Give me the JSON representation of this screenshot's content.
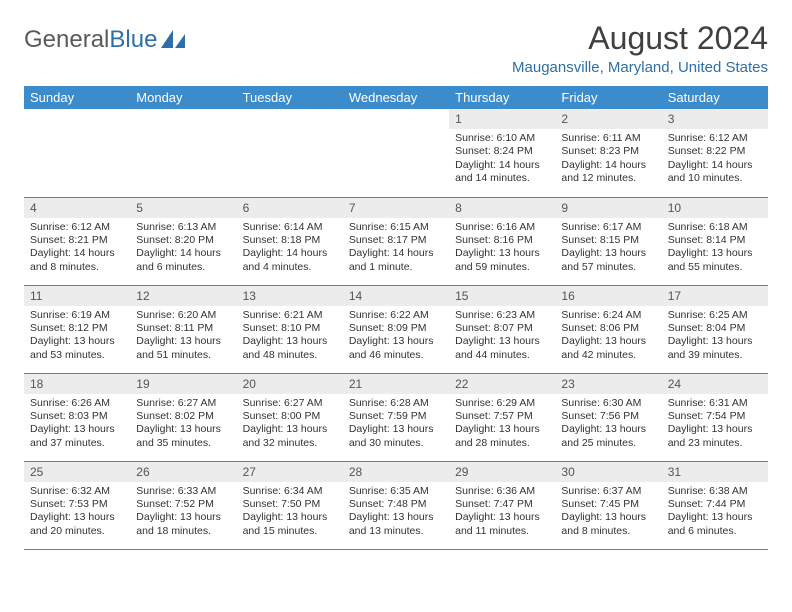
{
  "brand": {
    "word1": "General",
    "word2": "Blue"
  },
  "header": {
    "title": "August 2024",
    "location": "Maugansville, Maryland, United States"
  },
  "colors": {
    "header_bg": "#3c8ccb",
    "header_text": "#ffffff",
    "daynum_bg": "#ececec",
    "rule": "#3c8ccb",
    "accent_text": "#2f6fa8",
    "body_text": "#333333",
    "page_bg": "#ffffff"
  },
  "typography": {
    "title_fontsize": 32,
    "location_fontsize": 15,
    "dayheader_fontsize": 13,
    "daynum_fontsize": 12,
    "detail_fontsize": 10.5
  },
  "calendar": {
    "type": "table",
    "day_headers": [
      "Sunday",
      "Monday",
      "Tuesday",
      "Wednesday",
      "Thursday",
      "Friday",
      "Saturday"
    ],
    "weeks": [
      [
        {
          "empty": true
        },
        {
          "empty": true
        },
        {
          "empty": true
        },
        {
          "empty": true
        },
        {
          "day": "1",
          "sunrise": "Sunrise: 6:10 AM",
          "sunset": "Sunset: 8:24 PM",
          "daylight": "Daylight: 14 hours and 14 minutes."
        },
        {
          "day": "2",
          "sunrise": "Sunrise: 6:11 AM",
          "sunset": "Sunset: 8:23 PM",
          "daylight": "Daylight: 14 hours and 12 minutes."
        },
        {
          "day": "3",
          "sunrise": "Sunrise: 6:12 AM",
          "sunset": "Sunset: 8:22 PM",
          "daylight": "Daylight: 14 hours and 10 minutes."
        }
      ],
      [
        {
          "day": "4",
          "sunrise": "Sunrise: 6:12 AM",
          "sunset": "Sunset: 8:21 PM",
          "daylight": "Daylight: 14 hours and 8 minutes."
        },
        {
          "day": "5",
          "sunrise": "Sunrise: 6:13 AM",
          "sunset": "Sunset: 8:20 PM",
          "daylight": "Daylight: 14 hours and 6 minutes."
        },
        {
          "day": "6",
          "sunrise": "Sunrise: 6:14 AM",
          "sunset": "Sunset: 8:18 PM",
          "daylight": "Daylight: 14 hours and 4 minutes."
        },
        {
          "day": "7",
          "sunrise": "Sunrise: 6:15 AM",
          "sunset": "Sunset: 8:17 PM",
          "daylight": "Daylight: 14 hours and 1 minute."
        },
        {
          "day": "8",
          "sunrise": "Sunrise: 6:16 AM",
          "sunset": "Sunset: 8:16 PM",
          "daylight": "Daylight: 13 hours and 59 minutes."
        },
        {
          "day": "9",
          "sunrise": "Sunrise: 6:17 AM",
          "sunset": "Sunset: 8:15 PM",
          "daylight": "Daylight: 13 hours and 57 minutes."
        },
        {
          "day": "10",
          "sunrise": "Sunrise: 6:18 AM",
          "sunset": "Sunset: 8:14 PM",
          "daylight": "Daylight: 13 hours and 55 minutes."
        }
      ],
      [
        {
          "day": "11",
          "sunrise": "Sunrise: 6:19 AM",
          "sunset": "Sunset: 8:12 PM",
          "daylight": "Daylight: 13 hours and 53 minutes."
        },
        {
          "day": "12",
          "sunrise": "Sunrise: 6:20 AM",
          "sunset": "Sunset: 8:11 PM",
          "daylight": "Daylight: 13 hours and 51 minutes."
        },
        {
          "day": "13",
          "sunrise": "Sunrise: 6:21 AM",
          "sunset": "Sunset: 8:10 PM",
          "daylight": "Daylight: 13 hours and 48 minutes."
        },
        {
          "day": "14",
          "sunrise": "Sunrise: 6:22 AM",
          "sunset": "Sunset: 8:09 PM",
          "daylight": "Daylight: 13 hours and 46 minutes."
        },
        {
          "day": "15",
          "sunrise": "Sunrise: 6:23 AM",
          "sunset": "Sunset: 8:07 PM",
          "daylight": "Daylight: 13 hours and 44 minutes."
        },
        {
          "day": "16",
          "sunrise": "Sunrise: 6:24 AM",
          "sunset": "Sunset: 8:06 PM",
          "daylight": "Daylight: 13 hours and 42 minutes."
        },
        {
          "day": "17",
          "sunrise": "Sunrise: 6:25 AM",
          "sunset": "Sunset: 8:04 PM",
          "daylight": "Daylight: 13 hours and 39 minutes."
        }
      ],
      [
        {
          "day": "18",
          "sunrise": "Sunrise: 6:26 AM",
          "sunset": "Sunset: 8:03 PM",
          "daylight": "Daylight: 13 hours and 37 minutes."
        },
        {
          "day": "19",
          "sunrise": "Sunrise: 6:27 AM",
          "sunset": "Sunset: 8:02 PM",
          "daylight": "Daylight: 13 hours and 35 minutes."
        },
        {
          "day": "20",
          "sunrise": "Sunrise: 6:27 AM",
          "sunset": "Sunset: 8:00 PM",
          "daylight": "Daylight: 13 hours and 32 minutes."
        },
        {
          "day": "21",
          "sunrise": "Sunrise: 6:28 AM",
          "sunset": "Sunset: 7:59 PM",
          "daylight": "Daylight: 13 hours and 30 minutes."
        },
        {
          "day": "22",
          "sunrise": "Sunrise: 6:29 AM",
          "sunset": "Sunset: 7:57 PM",
          "daylight": "Daylight: 13 hours and 28 minutes."
        },
        {
          "day": "23",
          "sunrise": "Sunrise: 6:30 AM",
          "sunset": "Sunset: 7:56 PM",
          "daylight": "Daylight: 13 hours and 25 minutes."
        },
        {
          "day": "24",
          "sunrise": "Sunrise: 6:31 AM",
          "sunset": "Sunset: 7:54 PM",
          "daylight": "Daylight: 13 hours and 23 minutes."
        }
      ],
      [
        {
          "day": "25",
          "sunrise": "Sunrise: 6:32 AM",
          "sunset": "Sunset: 7:53 PM",
          "daylight": "Daylight: 13 hours and 20 minutes."
        },
        {
          "day": "26",
          "sunrise": "Sunrise: 6:33 AM",
          "sunset": "Sunset: 7:52 PM",
          "daylight": "Daylight: 13 hours and 18 minutes."
        },
        {
          "day": "27",
          "sunrise": "Sunrise: 6:34 AM",
          "sunset": "Sunset: 7:50 PM",
          "daylight": "Daylight: 13 hours and 15 minutes."
        },
        {
          "day": "28",
          "sunrise": "Sunrise: 6:35 AM",
          "sunset": "Sunset: 7:48 PM",
          "daylight": "Daylight: 13 hours and 13 minutes."
        },
        {
          "day": "29",
          "sunrise": "Sunrise: 6:36 AM",
          "sunset": "Sunset: 7:47 PM",
          "daylight": "Daylight: 13 hours and 11 minutes."
        },
        {
          "day": "30",
          "sunrise": "Sunrise: 6:37 AM",
          "sunset": "Sunset: 7:45 PM",
          "daylight": "Daylight: 13 hours and 8 minutes."
        },
        {
          "day": "31",
          "sunrise": "Sunrise: 6:38 AM",
          "sunset": "Sunset: 7:44 PM",
          "daylight": "Daylight: 13 hours and 6 minutes."
        }
      ]
    ]
  }
}
